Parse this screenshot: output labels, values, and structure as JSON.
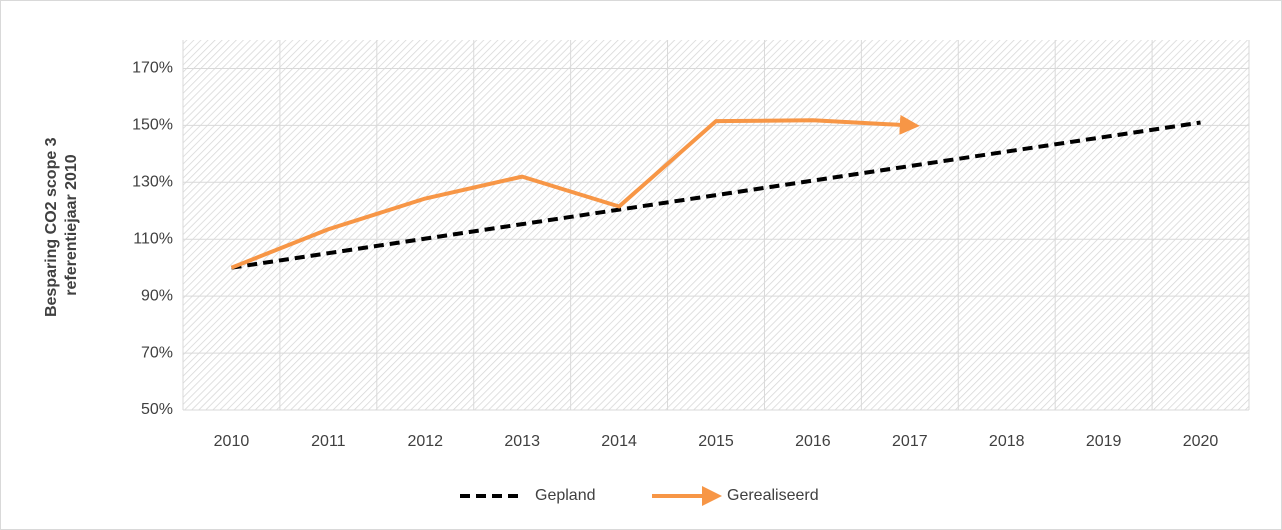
{
  "chart_data": {
    "type": "line",
    "ylabel": [
      "Besparing CO2 scope 3",
      "referentiejaar 2010"
    ],
    "categories": [
      "2010",
      "2011",
      "2012",
      "2013",
      "2014",
      "2015",
      "2016",
      "2017",
      "2018",
      "2019",
      "2020"
    ],
    "series": [
      {
        "name": "Gepland",
        "color": "#000000",
        "dashed": true,
        "values": [
          100,
          105.1,
          110.2,
          115.3,
          120.4,
          125.5,
          130.6,
          135.7,
          140.8,
          145.9,
          151
        ]
      },
      {
        "name": "Gerealiseerd",
        "color": "#f79646",
        "arrow": true,
        "values": [
          100,
          113.5,
          124.3,
          132,
          121.5,
          151.5,
          151.8,
          150,
          null,
          null,
          null
        ]
      }
    ],
    "ylim": [
      50,
      180
    ],
    "yticks": [
      {
        "value": 50,
        "label": "50%"
      },
      {
        "value": 70,
        "label": "70%"
      },
      {
        "value": 90,
        "label": "90%"
      },
      {
        "value": 110,
        "label": "110%"
      },
      {
        "value": 130,
        "label": "130%"
      },
      {
        "value": 150,
        "label": "150%"
      },
      {
        "value": 170,
        "label": "170%"
      }
    ],
    "grid": true,
    "legend": "bottom"
  }
}
